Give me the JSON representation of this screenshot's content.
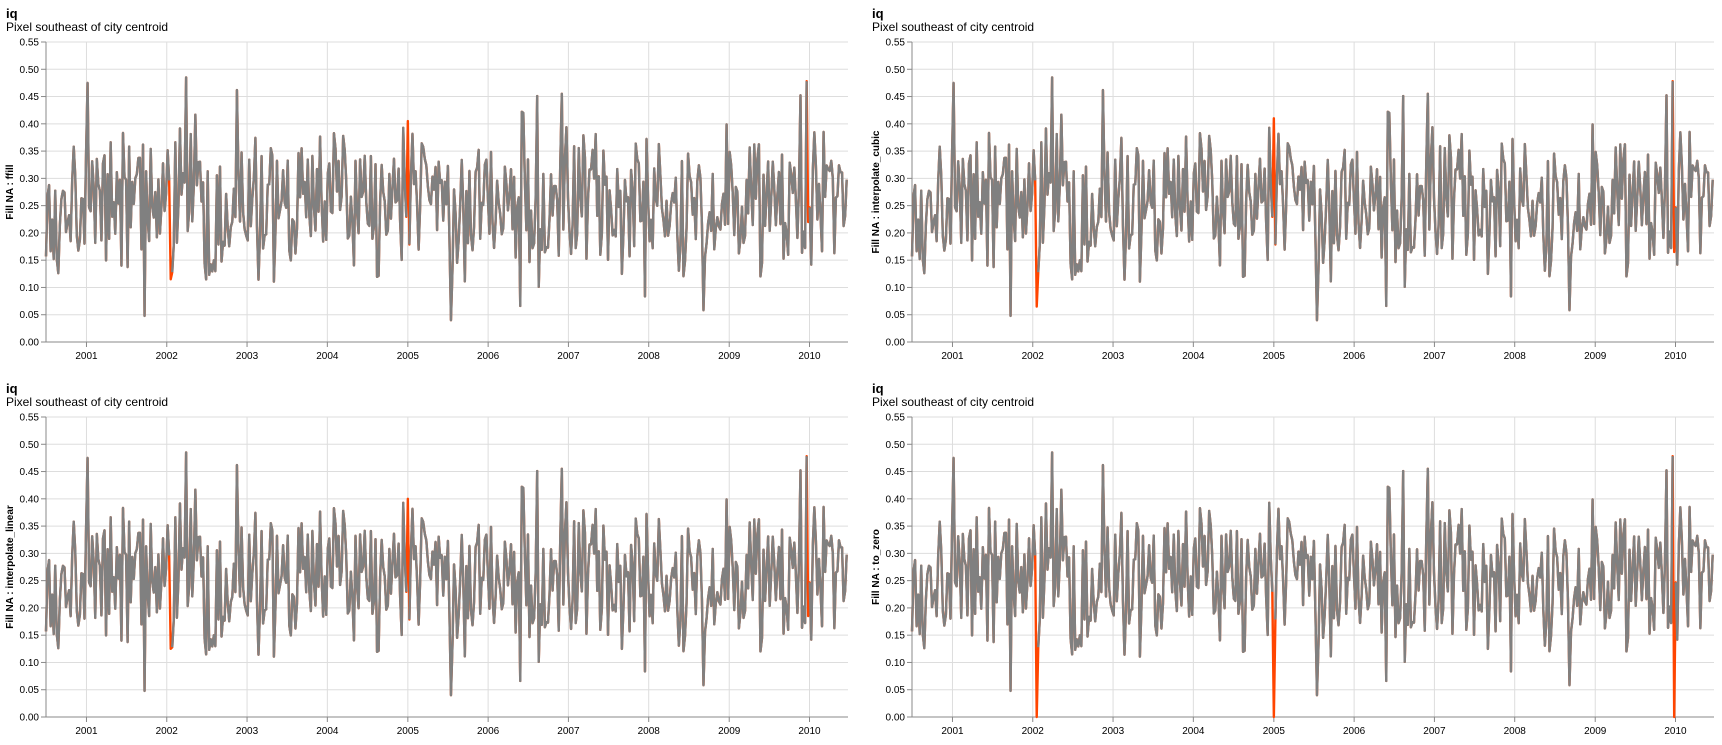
{
  "chart_data": [
    {
      "type": "line",
      "title": "iq",
      "subtitle": "Pixel southeast of city centroid",
      "ylabel": "Fill NA : ffill",
      "ylim": [
        0,
        0.55
      ],
      "yticks": [
        "0.00",
        "0.05",
        "0.10",
        "0.15",
        "0.20",
        "0.25",
        "0.30",
        "0.35",
        "0.40",
        "0.45",
        "0.50",
        "0.55"
      ],
      "xlim": [
        "2000-07-01",
        "2010-06-25"
      ],
      "xticks": [
        "2001",
        "2002",
        "2003",
        "2004",
        "2005",
        "2006",
        "2007",
        "2008",
        "2009",
        "2010"
      ],
      "grid": true,
      "series": [
        {
          "color": "#ff4500"
        },
        {
          "color": "#808080"
        }
      ],
      "missing_gaps": [
        {
          "x": "2002-01-22",
          "filled_value": 0.115
        },
        {
          "x": "2004-12-30",
          "filled_value": 0.405
        },
        {
          "x": "2009-12-24",
          "filled_value": 0.22
        }
      ]
    },
    {
      "type": "line",
      "title": "iq",
      "subtitle": "Pixel southeast of city centroid",
      "ylabel": "Fill NA : interpolate_cubic",
      "ylim": [
        0,
        0.55
      ],
      "yticks": [
        "0.00",
        "0.05",
        "0.10",
        "0.15",
        "0.20",
        "0.25",
        "0.30",
        "0.35",
        "0.40",
        "0.45",
        "0.50",
        "0.55"
      ],
      "xlim": [
        "2000-07-01",
        "2010-06-25"
      ],
      "xticks": [
        "2001",
        "2002",
        "2003",
        "2004",
        "2005",
        "2006",
        "2007",
        "2008",
        "2009",
        "2010"
      ],
      "grid": true,
      "series": [
        {
          "color": "#ff4500"
        },
        {
          "color": "#808080"
        }
      ],
      "missing_gaps": [
        {
          "x": "2002-01-22",
          "filled_value": 0.065
        },
        {
          "x": "2004-12-30",
          "filled_value": 0.41
        },
        {
          "x": "2009-12-24",
          "filled_value": 0.165
        }
      ]
    },
    {
      "type": "line",
      "title": "iq",
      "subtitle": "Pixel southeast of city centroid",
      "ylabel": "Fill NA : interpolate_linear",
      "ylim": [
        0,
        0.55
      ],
      "yticks": [
        "0.00",
        "0.05",
        "0.10",
        "0.15",
        "0.20",
        "0.25",
        "0.30",
        "0.35",
        "0.40",
        "0.45",
        "0.50",
        "0.55"
      ],
      "xlim": [
        "2000-07-01",
        "2010-06-25"
      ],
      "xticks": [
        "2001",
        "2002",
        "2003",
        "2004",
        "2005",
        "2006",
        "2007",
        "2008",
        "2009",
        "2010"
      ],
      "grid": true,
      "series": [
        {
          "color": "#ff4500"
        },
        {
          "color": "#808080"
        }
      ],
      "missing_gaps": [
        {
          "x": "2002-01-22",
          "filled_value": 0.125
        },
        {
          "x": "2004-12-30",
          "filled_value": 0.4
        },
        {
          "x": "2009-12-24",
          "filled_value": 0.185
        }
      ]
    },
    {
      "type": "line",
      "title": "iq",
      "subtitle": "Pixel southeast of city centroid",
      "ylabel": "Fill NA : to_zero",
      "ylim": [
        0,
        0.55
      ],
      "yticks": [
        "0.00",
        "0.05",
        "0.10",
        "0.15",
        "0.20",
        "0.25",
        "0.30",
        "0.35",
        "0.40",
        "0.45",
        "0.50",
        "0.55"
      ],
      "xlim": [
        "2000-07-01",
        "2010-06-25"
      ],
      "xticks": [
        "2001",
        "2002",
        "2003",
        "2004",
        "2005",
        "2006",
        "2007",
        "2008",
        "2009",
        "2010"
      ],
      "grid": true,
      "series": [
        {
          "color": "#ff4500"
        },
        {
          "color": "#808080"
        }
      ],
      "missing_gaps": [
        {
          "x": "2002-01-22",
          "filled_value": 0.0
        },
        {
          "x": "2004-12-30",
          "filled_value": 0.0
        },
        {
          "x": "2009-12-24",
          "filled_value": 0.0
        }
      ]
    }
  ]
}
